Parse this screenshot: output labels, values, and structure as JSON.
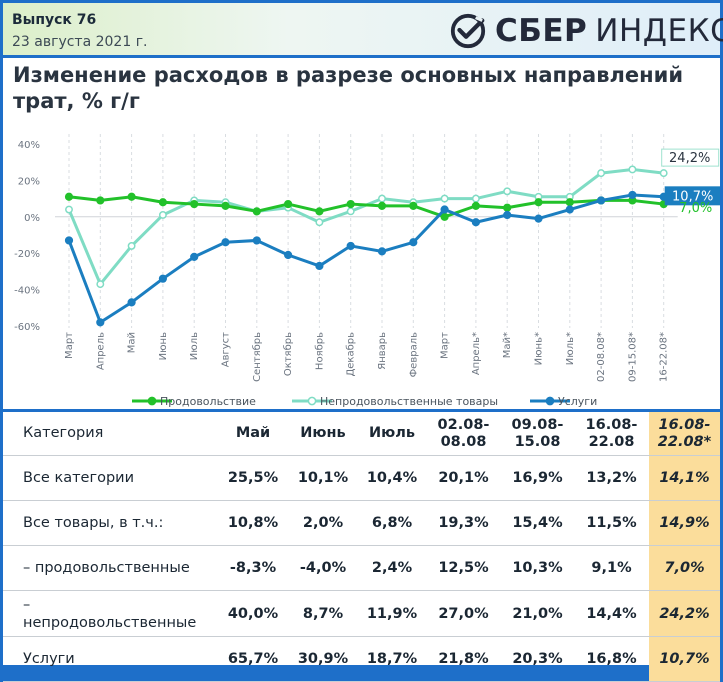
{
  "header": {
    "issue": "Выпуск 76",
    "date": "23 августа 2021 г.",
    "logo_sber": "СБЕР",
    "logo_index": "ИНДЕКС"
  },
  "colors": {
    "food": "#22c12a",
    "nonfood": "#7fdcc4",
    "services": "#1b7ec0",
    "highlight": "#fbdd9b",
    "frame": "#1e6fc9"
  },
  "chart_data": {
    "type": "line",
    "title": "Изменение расходов в разрезе основных направлений трат, % г/г",
    "categories": [
      "Март",
      "Апрель",
      "Май",
      "Июнь",
      "Июль",
      "Август",
      "Сентябрь",
      "Октябрь",
      "Ноябрь",
      "Декабрь",
      "Январь",
      "Февраль",
      "Март",
      "Апрель*",
      "Май*",
      "Июнь*",
      "Июль*",
      "02-08.08*",
      "09-15.08*",
      "16-22.08*"
    ],
    "yticks": [
      "40%",
      "20%",
      "0%",
      "-20%",
      "-40%",
      "-60%"
    ],
    "ylim": [
      -60,
      40
    ],
    "legend_position": "bottom",
    "series": [
      {
        "name": "Продовольствие",
        "color": "#22c12a",
        "values": [
          11,
          9,
          11,
          8,
          7,
          6,
          3,
          7,
          3,
          7,
          6,
          6,
          0,
          6,
          5,
          8,
          8,
          9,
          9,
          7
        ]
      },
      {
        "name": "Непродовольственные товары",
        "color": "#7fdcc4",
        "values": [
          4,
          -37,
          -16,
          1,
          9,
          8,
          3,
          5,
          -3,
          3,
          10,
          8,
          10,
          10,
          14,
          11,
          11,
          24,
          26,
          24
        ]
      },
      {
        "name": "Услуги",
        "color": "#1b7ec0",
        "values": [
          -13,
          -58,
          -47,
          -34,
          -22,
          -14,
          -13,
          -21,
          -27,
          -16,
          -19,
          -14,
          4,
          -3,
          1,
          -1,
          4,
          9,
          12,
          11
        ]
      }
    ],
    "end_labels": [
      "24,2%",
      "10,7%",
      "7,0%"
    ]
  },
  "table": {
    "headers": [
      "Категория",
      "Май",
      "Июнь",
      "Июль",
      "02.08-\n08.08",
      "09.08-\n15.08",
      "16.08-\n22.08",
      "16.08-\n22.08*"
    ],
    "rows": [
      {
        "label": "Все категории",
        "values": [
          "25,5%",
          "10,1%",
          "10,4%",
          "20,1%",
          "16,9%",
          "13,2%",
          "14,1%"
        ]
      },
      {
        "label": "Все товары, в т.ч.:",
        "values": [
          "10,8%",
          "2,0%",
          "6,8%",
          "19,3%",
          "15,4%",
          "11,5%",
          "14,9%"
        ]
      },
      {
        "label": "– продовольственные",
        "values": [
          "-8,3%",
          "-4,0%",
          "2,4%",
          "12,5%",
          "10,3%",
          "9,1%",
          "7,0%"
        ]
      },
      {
        "label": "–\nнепродовольственные",
        "values": [
          "40,0%",
          "8,7%",
          "11,9%",
          "27,0%",
          "21,0%",
          "14,4%",
          "24,2%"
        ]
      },
      {
        "label": "Услуги",
        "values": [
          "65,7%",
          "30,9%",
          "18,7%",
          "21,8%",
          "20,3%",
          "16,8%",
          "10,7%"
        ]
      }
    ]
  }
}
